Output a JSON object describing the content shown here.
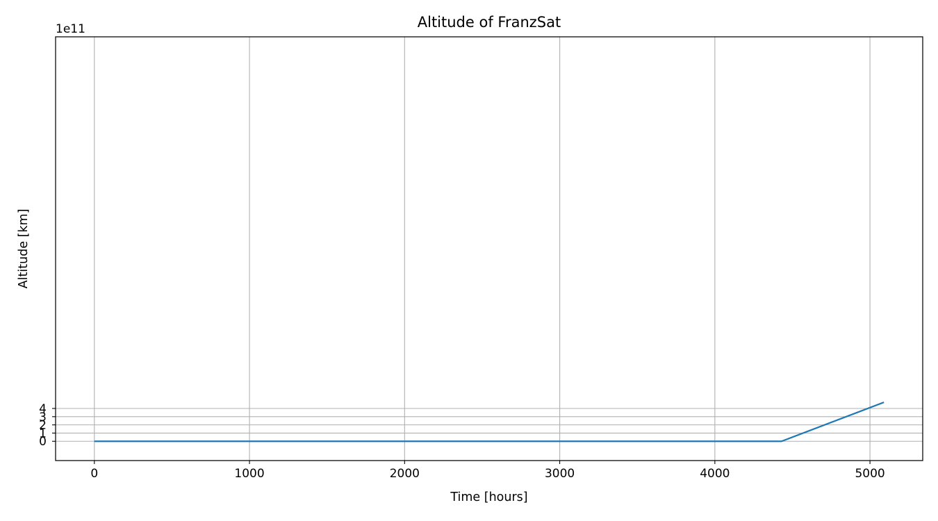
{
  "chart_data": {
    "type": "line",
    "title": "Altitude of FranzSat",
    "xlabel": "Time [hours]",
    "ylabel": "Altitude [km]",
    "y_offset_label": "1e11",
    "y_scale_factor": 100000000000,
    "xlim": [
      -250,
      5340
    ],
    "ylim": [
      -235000000000,
      4930000000000
    ],
    "xticks": [
      0,
      1000,
      2000,
      3000,
      4000,
      5000
    ],
    "xtick_labels": [
      "0",
      "1000",
      "2000",
      "3000",
      "4000",
      "5000"
    ],
    "yticks": [
      0,
      1,
      2,
      3,
      4
    ],
    "ytick_labels": [
      "0",
      "1",
      "2",
      "3",
      "4"
    ],
    "grid": true,
    "series": [
      {
        "color": "#1f77b4",
        "x": [
          0,
          4430,
          5090
        ],
        "y": [
          0,
          0,
          475000000000
        ]
      }
    ]
  }
}
